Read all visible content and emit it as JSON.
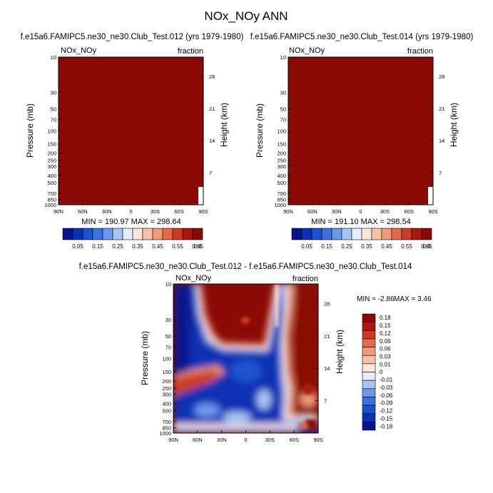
{
  "page": {
    "title": "NOx_NOy ANN"
  },
  "colors": {
    "dark_red": "#8b0a05",
    "cmap_abs": [
      "#08148c",
      "#0a32b4",
      "#1a52d0",
      "#3a72e0",
      "#6a98ec",
      "#a6c4f4",
      "#e4eefa",
      "#fce6dc",
      "#f8c2a8",
      "#f29a78",
      "#e66a48",
      "#cc3c24",
      "#a81a10",
      "#8b0a05"
    ],
    "cmap_diff": [
      "#08148c",
      "#0a32b4",
      "#1a52d0",
      "#3a72e0",
      "#6a98ec",
      "#a6c4f4",
      "#e4eefa",
      "#fce6dc",
      "#f8c2a8",
      "#f29a78",
      "#e66a48",
      "#cc3c24",
      "#a81a10",
      "#8b0a05"
    ]
  },
  "chart_data": [
    {
      "type": "heatmap",
      "title": "f.e15a6.FAMIPC5.ne30_ne30.Club_Test.012 (yrs 1979-1980)",
      "left_string": "NOx_NOy",
      "right_string": "fraction",
      "ylabel": "Pressure (mb)",
      "ylabel_right": "Height (km)",
      "x_ticks": [
        "90N",
        "60N",
        "30N",
        "0",
        "30S",
        "60S",
        "90S"
      ],
      "y_ticks": [
        "10",
        "30",
        "50",
        "70",
        "100",
        "150",
        "200",
        "250",
        "300",
        "400",
        "500",
        "700",
        "850",
        "1000"
      ],
      "y_ticks_right": [
        "28",
        "21",
        "14",
        "7"
      ],
      "stats": "MIN = 190.97   MAX = 298.64",
      "colorbar_labels": [
        "0.05",
        "0.15",
        "0.25",
        "0.35",
        "0.45",
        "0.55",
        "0.65",
        "0.8"
      ],
      "field_description_value": 298.64
    },
    {
      "type": "heatmap",
      "title": "f.e15a6.FAMIPC5.ne30_ne30.Club_Test.014 (yrs 1979-1980)",
      "left_string": "NOx_NOy",
      "right_string": "fraction",
      "ylabel": "Pressure (mb)",
      "ylabel_right": "Height (km)",
      "x_ticks": [
        "90N",
        "60N",
        "30N",
        "0",
        "30S",
        "60S",
        "90S"
      ],
      "y_ticks": [
        "10",
        "30",
        "50",
        "70",
        "100",
        "150",
        "200",
        "250",
        "300",
        "400",
        "500",
        "700",
        "850",
        "1000"
      ],
      "y_ticks_right": [
        "28",
        "21",
        "14",
        "7"
      ],
      "stats": "MIN = 191.10   MAX = 298.54",
      "colorbar_labels": [
        "0.05",
        "0.15",
        "0.25",
        "0.35",
        "0.45",
        "0.55",
        "0.65",
        "0.8"
      ]
    },
    {
      "type": "heatmap",
      "title": "f.e15a6.FAMIPC5.ne30_ne30.Club_Test.012 - f.e15a6.FAMIPC5.ne30_ne30.Club_Test.014",
      "left_string": "NOx_NOy",
      "right_string": "fraction",
      "ylabel": "Pressure (mb)",
      "ylabel_right": "Height (km)",
      "x_ticks": [
        "90N",
        "60N",
        "30N",
        "0",
        "30S",
        "60S",
        "90S"
      ],
      "y_ticks": [
        "10",
        "30",
        "50",
        "70",
        "100",
        "150",
        "200",
        "250",
        "300",
        "400",
        "500",
        "700",
        "850",
        "1000"
      ],
      "y_ticks_right": [
        "28",
        "21",
        "14",
        "7"
      ],
      "stats_min": "MIN =  -2.86",
      "stats_max": "MAX =   3.46",
      "colorbar_labels": [
        "0.18",
        "0.15",
        "0.12",
        "0.09",
        "0.06",
        "0.03",
        "0.01",
        "0",
        "-0.01",
        "-0.03",
        "-0.06",
        "-0.09",
        "-0.12",
        "-0.15",
        "-0.18"
      ]
    }
  ]
}
